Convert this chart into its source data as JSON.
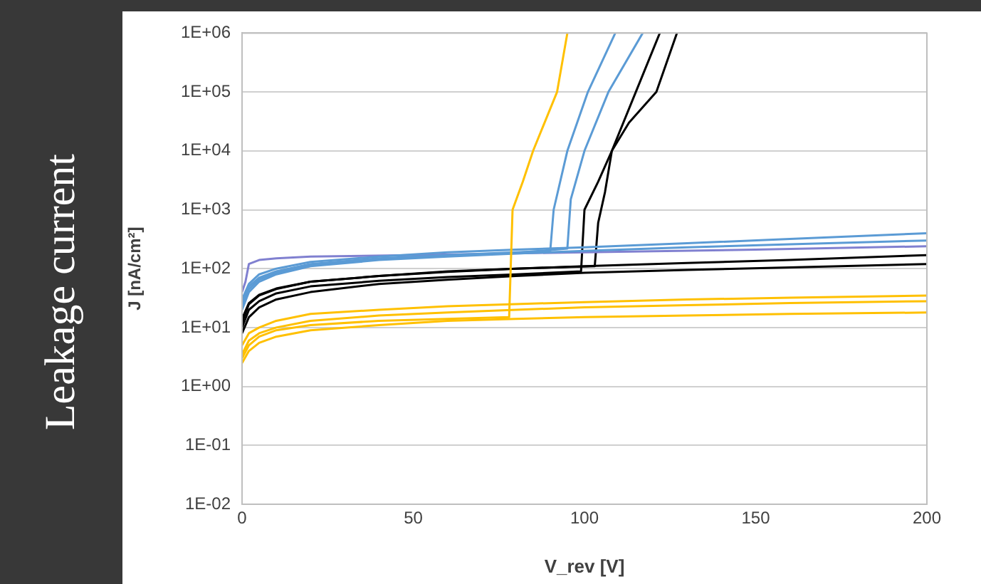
{
  "chart_data": {
    "type": "line",
    "title": "Leakage current",
    "xlabel": "V_rev [V]",
    "ylabel": "J [nA/cm²]",
    "x": [
      0,
      2,
      5,
      10,
      20,
      40,
      60,
      80,
      100,
      130,
      160,
      200
    ],
    "series": [
      {
        "color": "#ffc000",
        "values": [
          2.5,
          4,
          5.5,
          7,
          9,
          11,
          13,
          14,
          15,
          16,
          17,
          18
        ]
      },
      {
        "color": "#ffc000",
        "values": [
          3.5,
          6,
          8,
          10,
          13,
          16,
          18,
          20,
          22,
          24,
          26,
          28
        ]
      },
      {
        "color": "#ffc000",
        "values": [
          5,
          8,
          10,
          13,
          17,
          20,
          23,
          25,
          27,
          30,
          32,
          35
        ]
      },
      {
        "color": "#ffc000",
        "x": [
          0,
          2,
          5,
          10,
          20,
          40,
          60,
          78,
          79,
          82,
          85,
          92,
          95
        ],
        "values": [
          3,
          5,
          7,
          9,
          11,
          13,
          14,
          15,
          1000,
          3000,
          10000,
          100000,
          1000000
        ]
      },
      {
        "color": "#5b9bd5",
        "values": [
          20,
          40,
          60,
          80,
          110,
          140,
          160,
          180,
          200,
          230,
          260,
          300
        ]
      },
      {
        "color": "#5b9bd5",
        "values": [
          30,
          55,
          80,
          100,
          130,
          160,
          190,
          210,
          230,
          270,
          320,
          400
        ]
      },
      {
        "color": "#5b9bd5",
        "x": [
          0,
          2,
          5,
          10,
          20,
          40,
          60,
          80,
          90,
          91,
          95,
          101,
          109
        ],
        "values": [
          25,
          50,
          70,
          90,
          120,
          150,
          170,
          190,
          200,
          1000,
          10000,
          100000,
          1000000
        ]
      },
      {
        "color": "#5b9bd5",
        "x": [
          0,
          2,
          5,
          10,
          20,
          40,
          60,
          80,
          95,
          96,
          100,
          107,
          117
        ],
        "values": [
          22,
          45,
          65,
          85,
          115,
          145,
          165,
          185,
          220,
          1500,
          10000,
          100000,
          1000000
        ]
      },
      {
        "color": "#8080d0",
        "x": [
          0,
          1,
          2,
          5,
          10,
          20,
          50,
          100,
          150,
          200
        ],
        "values": [
          40,
          60,
          120,
          140,
          150,
          160,
          170,
          190,
          210,
          240
        ]
      },
      {
        "color": "#000000",
        "values": [
          8,
          15,
          22,
          30,
          40,
          55,
          65,
          75,
          85,
          95,
          105,
          120
        ]
      },
      {
        "color": "#000000",
        "values": [
          12,
          25,
          35,
          45,
          60,
          75,
          90,
          100,
          110,
          125,
          140,
          170
        ]
      },
      {
        "color": "#000000",
        "x": [
          0,
          2,
          5,
          10,
          20,
          40,
          60,
          80,
          99,
          100,
          104,
          108,
          115,
          122
        ],
        "values": [
          10,
          20,
          28,
          38,
          50,
          62,
          72,
          80,
          90,
          1000,
          3000,
          10000,
          100000,
          1000000
        ]
      },
      {
        "color": "#000000",
        "x": [
          0,
          2,
          5,
          10,
          20,
          40,
          60,
          80,
          103,
          104,
          106,
          108,
          113,
          121,
          127
        ],
        "values": [
          14,
          26,
          36,
          46,
          60,
          75,
          88,
          100,
          110,
          600,
          2000,
          10000,
          30000,
          100000,
          1000000
        ]
      }
    ],
    "log": "y",
    "xlim": [
      0,
      200
    ],
    "xticks": [
      0,
      50,
      100,
      150,
      200
    ],
    "ylim": [
      0.01,
      1000000
    ],
    "yticks": [
      {
        "value": 0.01,
        "label": "1E-02"
      },
      {
        "value": 0.1,
        "label": "1E-01"
      },
      {
        "value": 1,
        "label": "1E+00"
      },
      {
        "value": 10,
        "label": "1E+01"
      },
      {
        "value": 100,
        "label": "1E+02"
      },
      {
        "value": 1000,
        "label": "1E+03"
      },
      {
        "value": 10000,
        "label": "1E+04"
      },
      {
        "value": 100000,
        "label": "1E+05"
      },
      {
        "value": 1000000,
        "label": "1E+06"
      }
    ],
    "grid": "y",
    "legend": false,
    "marker": "none",
    "line_style": "solid"
  }
}
